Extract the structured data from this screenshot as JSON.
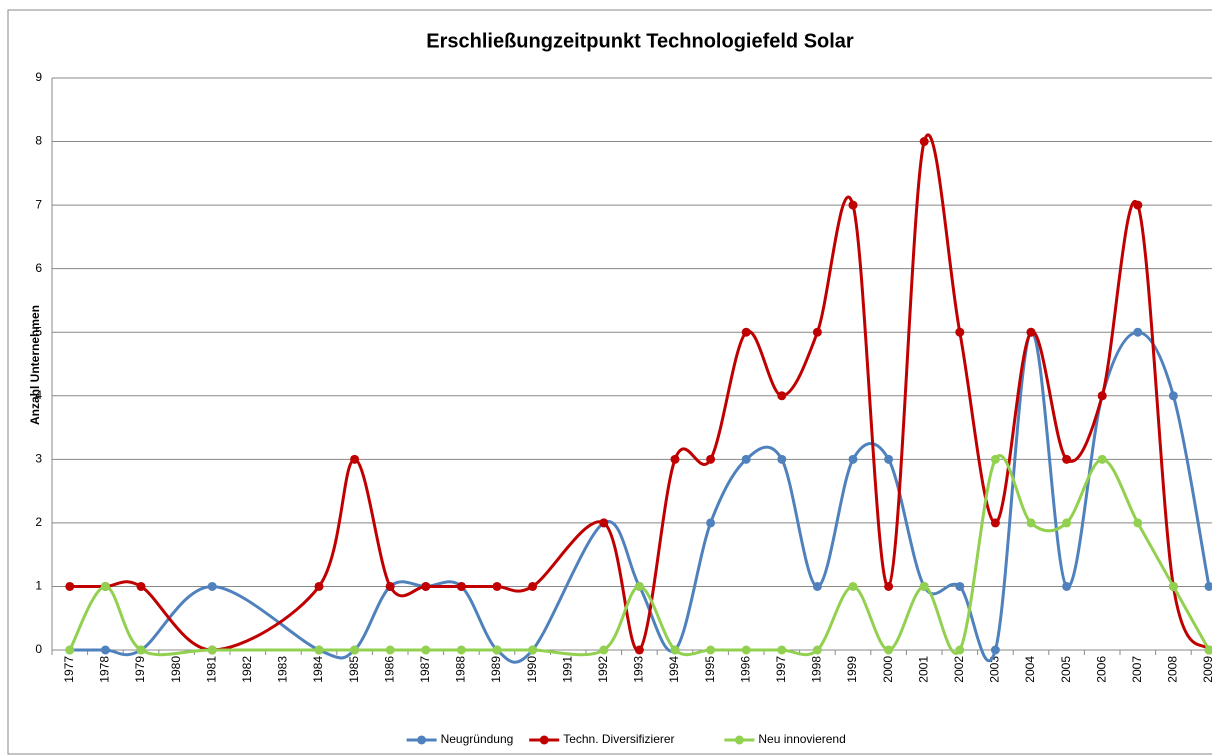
{
  "chart_data": {
    "type": "line",
    "title": "Erschließungzeitpunkt Technologiefeld Solar",
    "ylabel": "Anzahl Unternehmen",
    "xlim": [
      1976.5,
      2009.5
    ],
    "xticks": [
      1977,
      1978,
      1979,
      1980,
      1981,
      1982,
      1983,
      1984,
      1985,
      1986,
      1987,
      1988,
      1989,
      1990,
      1991,
      1992,
      1993,
      1994,
      1995,
      1996,
      1997,
      1998,
      1999,
      2000,
      2001,
      2002,
      2003,
      2004,
      2005,
      2006,
      2007,
      2008,
      2009
    ],
    "ylim": [
      0,
      9
    ],
    "yticks": [
      0,
      1,
      2,
      3,
      4,
      5,
      6,
      7,
      8,
      9
    ],
    "grid": true,
    "smooth": true,
    "legend": "bottom",
    "series": [
      {
        "name": "Neugründung",
        "color": "#4f81bd",
        "x": [
          1977,
          1978,
          1979,
          1981,
          1984,
          1985,
          1986,
          1987,
          1988,
          1989,
          1990,
          1992,
          1993,
          1994,
          1995,
          1996,
          1997,
          1998,
          1999,
          2000,
          2001,
          2002,
          2003,
          2004,
          2005,
          2006,
          2007,
          2008,
          2009
        ],
        "values": [
          0,
          0,
          0,
          1,
          0,
          0,
          1,
          1,
          1,
          0,
          0,
          2,
          1,
          0,
          2,
          3,
          3,
          1,
          3,
          3,
          1,
          1,
          0,
          5,
          1,
          4,
          5,
          4,
          1
        ]
      },
      {
        "name": "Techn. Diversifizierer",
        "color": "#c00000",
        "x": [
          1977,
          1978,
          1979,
          1981,
          1984,
          1985,
          1986,
          1987,
          1988,
          1989,
          1990,
          1992,
          1993,
          1994,
          1995,
          1996,
          1997,
          1998,
          1999,
          2000,
          2001,
          2002,
          2003,
          2004,
          2005,
          2006,
          2007,
          2008,
          2009
        ],
        "values": [
          1,
          1,
          1,
          0,
          1,
          3,
          1,
          1,
          1,
          1,
          1,
          2,
          0,
          3,
          3,
          5,
          4,
          5,
          7,
          1,
          8,
          5,
          2,
          5,
          3,
          4,
          7,
          1,
          0
        ]
      },
      {
        "name": "Neu innovierend",
        "color": "#92d050",
        "x": [
          1977,
          1978,
          1979,
          1981,
          1984,
          1985,
          1986,
          1987,
          1988,
          1989,
          1990,
          1992,
          1993,
          1994,
          1995,
          1996,
          1997,
          1998,
          1999,
          2000,
          2001,
          2002,
          2003,
          2004,
          2005,
          2006,
          2007,
          2008,
          2009
        ],
        "values": [
          0,
          1,
          0,
          0,
          0,
          0,
          0,
          0,
          0,
          0,
          0,
          0,
          1,
          0,
          0,
          0,
          0,
          0,
          1,
          0,
          1,
          0,
          3,
          2,
          2,
          3,
          2,
          1,
          0
        ]
      }
    ]
  }
}
